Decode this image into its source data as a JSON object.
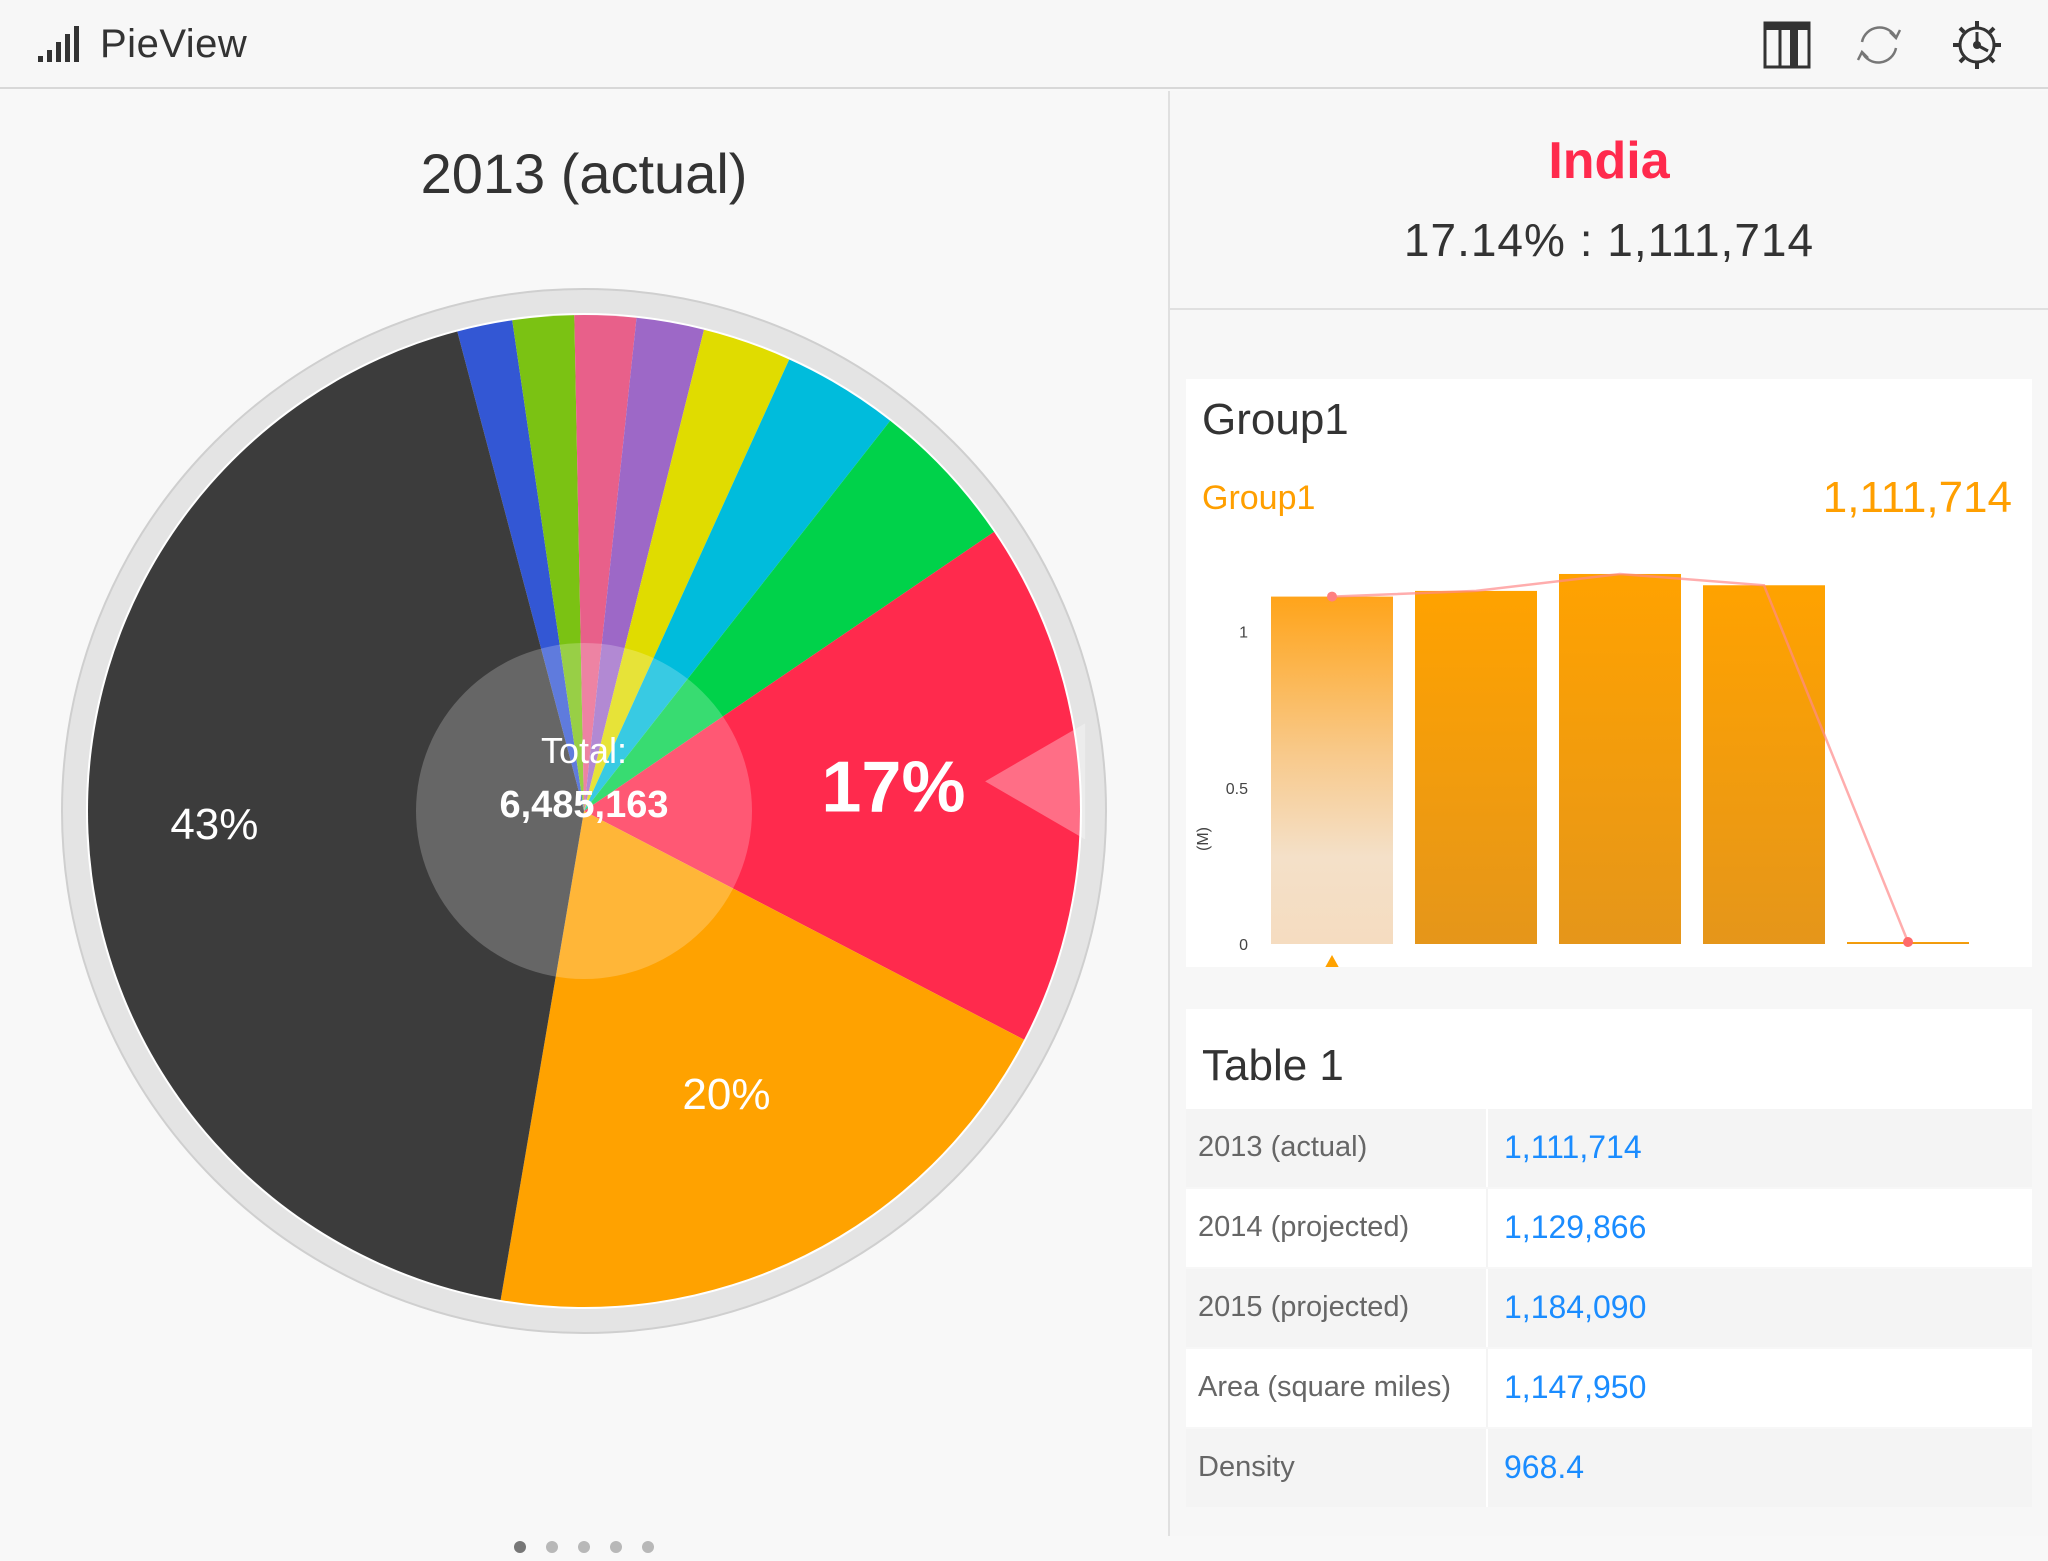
{
  "app": {
    "title": "PieView",
    "icon": "signal-bars-icon"
  },
  "toolbar": {
    "icons": [
      "columns-icon",
      "refresh-icon",
      "settings-gear-icon"
    ]
  },
  "pie": {
    "title": "2013 (actual)",
    "total_label": "Total:",
    "total_value": "6,485,163",
    "labels": {
      "big": "43%",
      "india": "17%",
      "orange": "20%"
    },
    "page_dots": 5,
    "active_dot": 0
  },
  "selection": {
    "name": "India",
    "value": "17.14% : 1,111,714"
  },
  "group_card": {
    "title": "Group1",
    "series_label": "Group1",
    "series_value": "1,111,714",
    "y_axis_label": "(M)",
    "y_ticks": [
      "1",
      "0.5",
      "0"
    ]
  },
  "table_card": {
    "title": "Table 1",
    "rows": [
      {
        "label": "2013 (actual)",
        "value": "1,111,714"
      },
      {
        "label": "2014 (projected)",
        "value": "1,129,866"
      },
      {
        "label": "2015 (projected)",
        "value": "1,184,090"
      },
      {
        "label": "Area (square miles)",
        "value": "1,147,950"
      },
      {
        "label": "Density",
        "value": "968.4"
      }
    ]
  },
  "colors": {
    "accent": "#ff2a4d",
    "orange": "#ffa200",
    "link": "#1a8cff"
  },
  "chart_data": [
    {
      "type": "pie",
      "title": "2013 (actual)",
      "center_text": "Total: 6,485,163",
      "slices": [
        {
          "value": 43.2,
          "color": "#3c3c3c",
          "label": "43%"
        },
        {
          "value": 1.8,
          "color": "#3357d4"
        },
        {
          "value": 2.0,
          "color": "#7bc213"
        },
        {
          "value": 2.0,
          "color": "#e8608a"
        },
        {
          "value": 2.2,
          "color": "#9d68c7"
        },
        {
          "value": 2.9,
          "color": "#e0dc00"
        },
        {
          "value": 3.8,
          "color": "#00bcdc"
        },
        {
          "value": 4.9,
          "color": "#00d24a"
        },
        {
          "value": 17.14,
          "color": "#ff2a4d",
          "label": "17%",
          "selected": true
        },
        {
          "value": 20.06,
          "color": "#ffa200",
          "label": "20%"
        }
      ]
    },
    {
      "type": "bar",
      "title": "Group1",
      "ylabel": "(M)",
      "ylim": [
        0,
        1.2
      ],
      "y_ticks": [
        0,
        0.5,
        1
      ],
      "series": [
        {
          "name": "Group1",
          "values": [
            1.111714,
            1.129866,
            1.18409,
            1.14795,
            0.0009684
          ]
        }
      ],
      "selected_index": 0
    }
  ]
}
